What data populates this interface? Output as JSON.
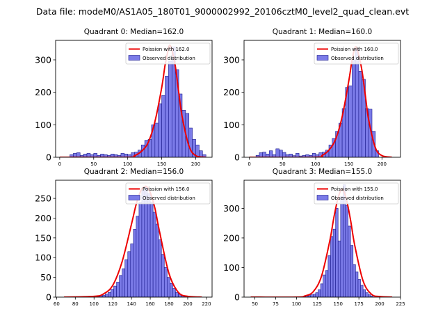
{
  "figure_title": "Data file: modeM0/AS1A05_180T01_9000002992_20106cztM0_level2_quad_clean.evt",
  "colors": {
    "bar_fill": "#7b7be8",
    "bar_edge": "#1a1a8c",
    "poisson_line": "#ee0000",
    "axis": "#000000"
  },
  "chart_data": [
    {
      "type": "bar",
      "title": "Quadrant 0: Median=162.0",
      "legend_line": "Poission with 162.0",
      "legend_bar": "Observed distribution",
      "legend_position": "top-right",
      "median": 162.0,
      "xlim": [
        -6,
        224
      ],
      "ylim": [
        0,
        360
      ],
      "xticks": [
        0,
        50,
        100,
        150,
        200
      ],
      "yticks": [
        0,
        100,
        200,
        300
      ],
      "bin_width": 5,
      "bins": [
        [
          15,
          8
        ],
        [
          20,
          12
        ],
        [
          25,
          14
        ],
        [
          30,
          6
        ],
        [
          35,
          10
        ],
        [
          40,
          12
        ],
        [
          45,
          8
        ],
        [
          50,
          12
        ],
        [
          55,
          6
        ],
        [
          60,
          10
        ],
        [
          65,
          8
        ],
        [
          70,
          6
        ],
        [
          75,
          10
        ],
        [
          80,
          8
        ],
        [
          85,
          6
        ],
        [
          90,
          12
        ],
        [
          95,
          10
        ],
        [
          100,
          8
        ],
        [
          105,
          14
        ],
        [
          110,
          16
        ],
        [
          115,
          22
        ],
        [
          120,
          38
        ],
        [
          125,
          52
        ],
        [
          130,
          55
        ],
        [
          135,
          100
        ],
        [
          140,
          105
        ],
        [
          145,
          165
        ],
        [
          150,
          190
        ],
        [
          155,
          250
        ],
        [
          160,
          295
        ],
        [
          165,
          340
        ],
        [
          170,
          270
        ],
        [
          175,
          195
        ],
        [
          180,
          145
        ],
        [
          185,
          135
        ],
        [
          190,
          90
        ],
        [
          195,
          55
        ],
        [
          200,
          38
        ],
        [
          205,
          20
        ],
        [
          210,
          8
        ]
      ],
      "poisson_x": [
        0,
        100,
        110,
        120,
        130,
        140,
        150,
        155,
        160,
        162,
        165,
        170,
        175,
        180,
        190,
        200,
        215
      ],
      "poisson_y": [
        0,
        0,
        5,
        18,
        45,
        110,
        215,
        285,
        335,
        345,
        330,
        280,
        200,
        125,
        35,
        5,
        0
      ]
    },
    {
      "type": "bar",
      "title": "Quadrant 1: Median=160.0",
      "legend_line": "Poission with 160.0",
      "legend_bar": "Observed distribution",
      "legend_position": "top-right",
      "median": 160.0,
      "xlim": [
        -8,
        228
      ],
      "ylim": [
        0,
        360
      ],
      "xticks": [
        0,
        50,
        100,
        150,
        200
      ],
      "yticks": [
        0,
        100,
        200,
        300
      ],
      "bin_width": 5,
      "bins": [
        [
          10,
          6
        ],
        [
          15,
          14
        ],
        [
          20,
          16
        ],
        [
          25,
          10
        ],
        [
          30,
          20
        ],
        [
          35,
          8
        ],
        [
          40,
          26
        ],
        [
          45,
          22
        ],
        [
          50,
          15
        ],
        [
          55,
          8
        ],
        [
          60,
          10
        ],
        [
          65,
          5
        ],
        [
          70,
          12
        ],
        [
          75,
          4
        ],
        [
          80,
          6
        ],
        [
          85,
          8
        ],
        [
          90,
          6
        ],
        [
          95,
          12
        ],
        [
          100,
          8
        ],
        [
          105,
          14
        ],
        [
          110,
          16
        ],
        [
          115,
          22
        ],
        [
          120,
          38
        ],
        [
          125,
          58
        ],
        [
          130,
          80
        ],
        [
          135,
          105
        ],
        [
          140,
          150
        ],
        [
          145,
          215
        ],
        [
          150,
          220
        ],
        [
          155,
          300
        ],
        [
          160,
          335
        ],
        [
          165,
          265
        ],
        [
          170,
          240
        ],
        [
          175,
          150
        ],
        [
          180,
          148
        ],
        [
          185,
          80
        ],
        [
          190,
          20
        ]
      ],
      "poisson_x": [
        0,
        100,
        110,
        120,
        130,
        140,
        150,
        155,
        160,
        165,
        170,
        175,
        180,
        190,
        200,
        215
      ],
      "poisson_y": [
        0,
        0,
        6,
        22,
        55,
        125,
        235,
        300,
        340,
        315,
        265,
        190,
        115,
        30,
        5,
        0
      ]
    },
    {
      "type": "bar",
      "title": "Quadrant 2: Median=156.0",
      "legend_line": "Poission with 156.0",
      "legend_bar": "Observed distribution",
      "legend_position": "top-right",
      "median": 156.0,
      "xlim": [
        59,
        226
      ],
      "ylim": [
        0,
        296
      ],
      "xticks": [
        60,
        80,
        100,
        120,
        140,
        160,
        180,
        200,
        220
      ],
      "yticks": [
        0,
        50,
        100,
        150,
        200,
        250
      ],
      "bin_width": 3,
      "bins": [
        [
          103,
          2
        ],
        [
          106,
          3
        ],
        [
          109,
          5
        ],
        [
          112,
          8
        ],
        [
          115,
          12
        ],
        [
          118,
          20
        ],
        [
          121,
          28
        ],
        [
          124,
          38
        ],
        [
          127,
          55
        ],
        [
          130,
          72
        ],
        [
          133,
          95
        ],
        [
          136,
          115
        ],
        [
          139,
          135
        ],
        [
          142,
          172
        ],
        [
          145,
          205
        ],
        [
          148,
          240
        ],
        [
          151,
          270
        ],
        [
          154,
          280
        ],
        [
          157,
          262
        ],
        [
          160,
          240
        ],
        [
          163,
          215
        ],
        [
          166,
          185
        ],
        [
          169,
          145
        ],
        [
          172,
          108
        ],
        [
          175,
          75
        ],
        [
          178,
          50
        ],
        [
          181,
          35
        ],
        [
          184,
          22
        ],
        [
          187,
          12
        ],
        [
          190,
          8
        ],
        [
          193,
          4
        ],
        [
          196,
          2
        ],
        [
          199,
          1
        ]
      ],
      "poisson_x": [
        68,
        100,
        110,
        120,
        130,
        140,
        145,
        150,
        153,
        156,
        160,
        165,
        170,
        180,
        190,
        200,
        215
      ],
      "poisson_y": [
        0,
        2,
        8,
        30,
        90,
        185,
        235,
        270,
        278,
        280,
        265,
        225,
        165,
        60,
        12,
        2,
        0
      ]
    },
    {
      "type": "bar",
      "title": "Quadrant 3: Median=155.0",
      "legend_line": "Poission with 155.0",
      "legend_bar": "Observed distribution",
      "legend_position": "top-right",
      "median": 155.0,
      "xlim": [
        37,
        225
      ],
      "ylim": [
        0,
        395
      ],
      "xticks": [
        50,
        75,
        100,
        125,
        150,
        175,
        200,
        225
      ],
      "yticks": [
        0,
        100,
        200,
        300
      ],
      "bin_width": 3,
      "bins": [
        [
          108,
          2
        ],
        [
          111,
          4
        ],
        [
          114,
          5
        ],
        [
          117,
          8
        ],
        [
          120,
          10
        ],
        [
          123,
          15
        ],
        [
          126,
          25
        ],
        [
          129,
          45
        ],
        [
          132,
          75
        ],
        [
          135,
          90
        ],
        [
          138,
          140
        ],
        [
          141,
          205
        ],
        [
          144,
          230
        ],
        [
          147,
          300
        ],
        [
          150,
          190
        ],
        [
          153,
          340
        ],
        [
          156,
          380
        ],
        [
          159,
          310
        ],
        [
          162,
          240
        ],
        [
          165,
          175
        ],
        [
          168,
          110
        ],
        [
          171,
          85
        ],
        [
          174,
          60
        ],
        [
          177,
          40
        ],
        [
          180,
          25
        ],
        [
          183,
          15
        ],
        [
          186,
          8
        ],
        [
          189,
          4
        ]
      ],
      "poisson_x": [
        45,
        100,
        110,
        120,
        130,
        140,
        145,
        150,
        155,
        160,
        165,
        170,
        180,
        190,
        200,
        215
      ],
      "poisson_y": [
        0,
        0,
        4,
        18,
        70,
        190,
        270,
        335,
        365,
        330,
        260,
        175,
        55,
        10,
        2,
        0
      ]
    }
  ]
}
